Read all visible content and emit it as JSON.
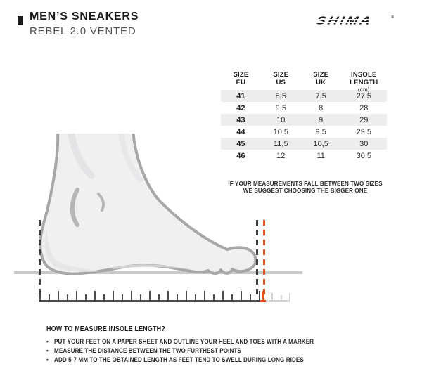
{
  "header": {
    "title": "MEN’S SNEAKERS",
    "subtitle": "REBEL 2.0 VENTED"
  },
  "brand": {
    "wordmark": "SHIMA",
    "registered_mark": "®"
  },
  "size_table": {
    "columns": [
      {
        "line1": "SIZE",
        "line2": "EU"
      },
      {
        "line1": "SIZE",
        "line2": "US"
      },
      {
        "line1": "SIZE",
        "line2": "UK"
      },
      {
        "line1": "INSOLE LENGTH",
        "line2": "(cm)"
      }
    ],
    "rows": [
      [
        "41",
        "8,5",
        "7,5",
        "27,5"
      ],
      [
        "42",
        "9,5",
        "8",
        "28"
      ],
      [
        "43",
        "10",
        "9",
        "29"
      ],
      [
        "44",
        "10,5",
        "9,5",
        "29,5"
      ],
      [
        "45",
        "11,5",
        "10,5",
        "30"
      ],
      [
        "46",
        "12",
        "11",
        "30,5"
      ]
    ],
    "note": {
      "line1": "IF YOUR MEASUREMENTS FALL BETWEEN TWO SIZES",
      "line2": "WE SUGGEST CHOOSING THE BIGGER ONE"
    }
  },
  "instructions": {
    "title": "HOW TO MEASURE INSOLE LENGTH?",
    "bullet_char": "•",
    "bullets": [
      "PUT YOUR FEET ON A PAPER SHEET AND OUTLINE YOUR HEEL AND TOES WITH A MARKER",
      "MEASURE THE DISTANCE BETWEEN THE TWO FURTHEST POINTS",
      "ADD 5-7 MM TO THE OBTAINED LENGTH AS FEET TEND TO SWELL DURING LONG RIDES"
    ]
  },
  "colors": {
    "accent": "#e84e1c",
    "ink": "#231f20",
    "row_stripe": "#ededee",
    "foot_fill": "#f0f0f1",
    "foot_outline": "#a6a7a9",
    "ground": "#c9c9cb"
  }
}
